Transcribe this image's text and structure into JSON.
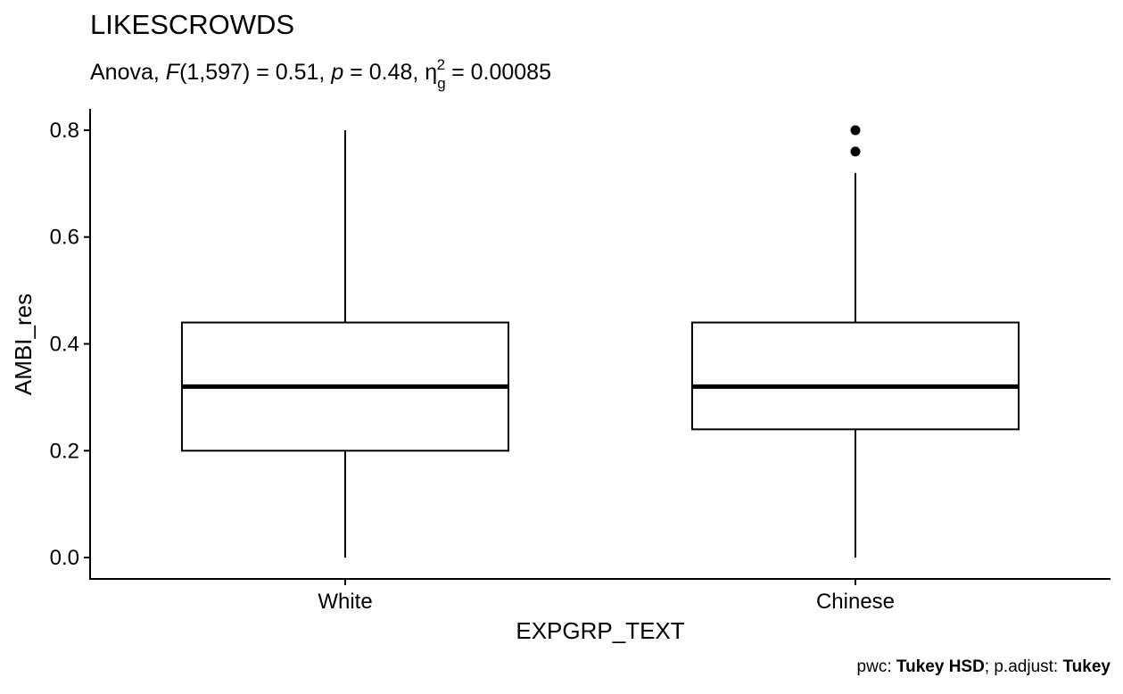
{
  "chart_data": {
    "type": "boxplot",
    "title": "LIKESCROWDS",
    "subtitle": {
      "prefix": "Anova, ",
      "stat_symbol": "F",
      "stat_args": "(1,597) = 0.51, ",
      "p_symbol": "p",
      "p_value": " = 0.48, ",
      "effect_symbol": "η",
      "effect_sub": "g",
      "effect_sup": "2",
      "effect_value": " = 0.00085"
    },
    "xlabel": "EXPGRP_TEXT",
    "ylabel": "AMBI_res",
    "ylim": [
      -0.04,
      0.84
    ],
    "yticks": [
      0.0,
      0.2,
      0.4,
      0.6,
      0.8
    ],
    "ytick_labels": [
      "0.0",
      "0.2",
      "0.4",
      "0.6",
      "0.8"
    ],
    "categories": [
      "White",
      "Chinese"
    ],
    "boxes": [
      {
        "category": "White",
        "whisker_low": 0.0,
        "q1": 0.2,
        "median": 0.32,
        "q3": 0.44,
        "whisker_high": 0.8,
        "outliers": []
      },
      {
        "category": "Chinese",
        "whisker_low": 0.0,
        "q1": 0.24,
        "median": 0.32,
        "q3": 0.44,
        "whisker_high": 0.72,
        "outliers": [
          0.76,
          0.8
        ]
      }
    ],
    "caption": {
      "part1": "pwc: ",
      "part2": "Tukey HSD",
      "part3": "; p.adjust: ",
      "part4": "Tukey"
    },
    "grid": false,
    "legend": "none"
  }
}
